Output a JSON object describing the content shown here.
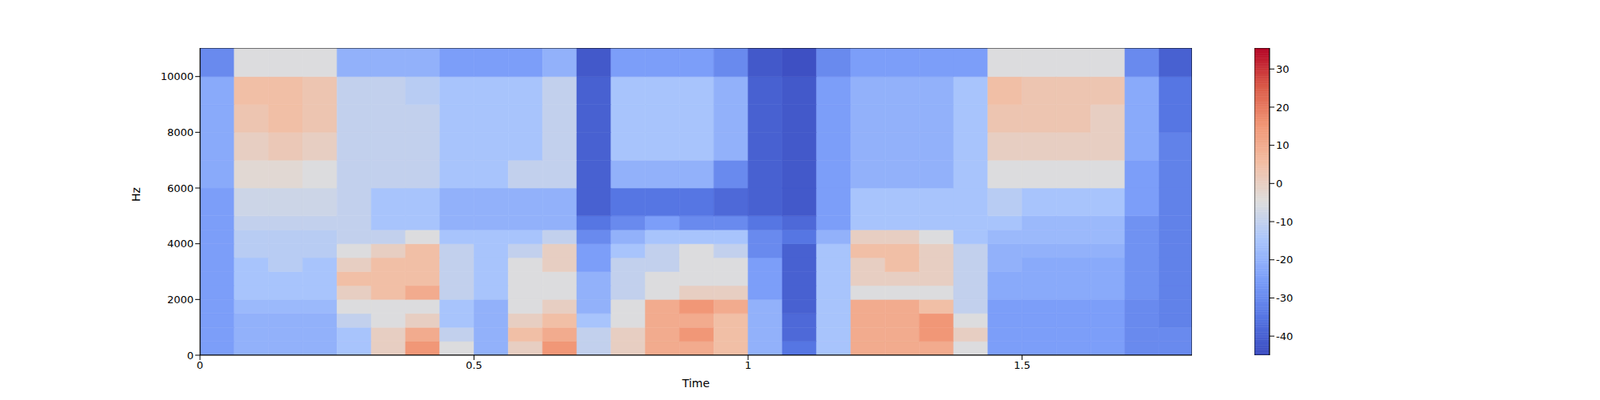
{
  "chart_data": {
    "type": "heatmap",
    "xlabel": "Time",
    "ylabel": "Hz",
    "color": "coolwarm",
    "xlim": [
      0,
      1.81
    ],
    "xticks": [
      0,
      0.5,
      1,
      1.5
    ],
    "ylim": [
      0,
      11025
    ],
    "yticks": [
      0,
      2000,
      4000,
      6000,
      8000,
      10000
    ],
    "x_edges": [
      0,
      0.0625,
      0.125,
      0.1875,
      0.25,
      0.3125,
      0.375,
      0.4375,
      0.5,
      0.5625,
      0.625,
      0.6875,
      0.75,
      0.8125,
      0.875,
      0.9375,
      1,
      1.0625,
      1.125,
      1.1875,
      1.25,
      1.3125,
      1.375,
      1.4375,
      1.5,
      1.5625,
      1.625,
      1.6875,
      1.75,
      1.81
    ],
    "y_edges": [
      0,
      500,
      1000,
      1500,
      2000,
      2500,
      3000,
      3500,
      4000,
      4500,
      5000,
      6000,
      7000,
      8000,
      9000,
      10000,
      11025
    ],
    "cells": [
      [
        -25,
        -20,
        -20,
        -20,
        -15,
        0,
        15,
        -5,
        -20,
        0,
        15,
        -10,
        0,
        10,
        10,
        5,
        -20,
        -35,
        -15,
        10,
        10,
        10,
        -5,
        -25,
        -25,
        -25,
        -25,
        -30,
        -30
      ],
      [
        -25,
        -20,
        -20,
        -20,
        -15,
        0,
        10,
        -10,
        -20,
        5,
        10,
        -10,
        0,
        10,
        15,
        5,
        -20,
        -38,
        -15,
        10,
        10,
        15,
        0,
        -25,
        -25,
        -25,
        -25,
        -30,
        -30
      ],
      [
        -25,
        -20,
        -20,
        -20,
        -10,
        -5,
        0,
        -15,
        -20,
        0,
        5,
        -15,
        -5,
        10,
        10,
        5,
        -20,
        -38,
        -15,
        10,
        10,
        15,
        -5,
        -25,
        -25,
        -25,
        -25,
        -30,
        -32
      ],
      [
        -25,
        -18,
        -18,
        -18,
        -5,
        -5,
        -5,
        -15,
        -20,
        -5,
        0,
        -20,
        -5,
        10,
        15,
        10,
        -20,
        -40,
        -15,
        10,
        10,
        5,
        -10,
        -25,
        -25,
        -25,
        -25,
        -30,
        -32
      ],
      [
        -25,
        -15,
        -15,
        -15,
        0,
        5,
        10,
        -10,
        -15,
        -5,
        -5,
        -20,
        -10,
        -5,
        0,
        0,
        -25,
        -40,
        -15,
        -5,
        -5,
        -5,
        -10,
        -22,
        -22,
        -22,
        -22,
        -28,
        -32
      ],
      [
        -25,
        -15,
        -15,
        -15,
        5,
        5,
        5,
        -10,
        -15,
        -5,
        -5,
        -20,
        -10,
        -5,
        -5,
        -5,
        -25,
        -40,
        -15,
        0,
        0,
        0,
        -10,
        -22,
        -22,
        -22,
        -22,
        -28,
        -32
      ],
      [
        -25,
        -15,
        -12,
        -15,
        0,
        5,
        5,
        -10,
        -15,
        -5,
        0,
        -25,
        -10,
        -10,
        -5,
        -5,
        -25,
        -40,
        -15,
        0,
        5,
        0,
        -10,
        -20,
        -22,
        -22,
        -22,
        -28,
        -32
      ],
      [
        -25,
        -12,
        -12,
        -12,
        -5,
        0,
        5,
        -10,
        -15,
        -10,
        0,
        -25,
        -15,
        -10,
        -5,
        -10,
        -30,
        -40,
        -15,
        5,
        5,
        0,
        -10,
        -20,
        -20,
        -20,
        -20,
        -28,
        -32
      ],
      [
        -25,
        -12,
        -12,
        -12,
        -10,
        -10,
        -5,
        -15,
        -15,
        -15,
        -10,
        -30,
        -20,
        -15,
        -15,
        -15,
        -30,
        -35,
        -20,
        0,
        0,
        -5,
        -15,
        -18,
        -18,
        -18,
        -18,
        -28,
        -32
      ],
      [
        -25,
        -10,
        -10,
        -10,
        -10,
        -15,
        -15,
        -20,
        -20,
        -20,
        -20,
        -35,
        -30,
        -25,
        -30,
        -30,
        -35,
        -38,
        -25,
        -15,
        -15,
        -15,
        -15,
        -15,
        -18,
        -18,
        -18,
        -28,
        -32
      ],
      [
        -25,
        -8,
        -8,
        -8,
        -10,
        -15,
        -15,
        -20,
        -20,
        -20,
        -20,
        -40,
        -35,
        -35,
        -35,
        -38,
        -40,
        -42,
        -25,
        -15,
        -15,
        -15,
        -15,
        -12,
        -15,
        -15,
        -15,
        -25,
        -32
      ],
      [
        -22,
        -3,
        -3,
        -5,
        -10,
        -10,
        -10,
        -15,
        -15,
        -10,
        -10,
        -40,
        -20,
        -20,
        -20,
        -30,
        -40,
        -42,
        -25,
        -20,
        -20,
        -20,
        -15,
        -5,
        -5,
        -5,
        -5,
        -25,
        -32
      ],
      [
        -22,
        0,
        2,
        0,
        -10,
        -10,
        -10,
        -15,
        -15,
        -15,
        -10,
        -40,
        -15,
        -15,
        -15,
        -20,
        -40,
        -42,
        -25,
        -20,
        -20,
        -20,
        -15,
        0,
        0,
        0,
        0,
        -22,
        -32
      ],
      [
        -22,
        3,
        5,
        3,
        -10,
        -10,
        -10,
        -15,
        -15,
        -15,
        -10,
        -40,
        -15,
        -15,
        -15,
        -20,
        -40,
        -42,
        -25,
        -20,
        -20,
        -20,
        -15,
        3,
        3,
        3,
        0,
        -22,
        -35
      ],
      [
        -22,
        5,
        5,
        3,
        -10,
        -10,
        -12,
        -15,
        -15,
        -15,
        -10,
        -40,
        -15,
        -15,
        -15,
        -20,
        -40,
        -42,
        -25,
        -20,
        -20,
        -20,
        -15,
        5,
        3,
        3,
        3,
        -22,
        -35
      ],
      [
        -30,
        -5,
        -5,
        -5,
        -20,
        -20,
        -20,
        -25,
        -25,
        -25,
        -20,
        -42,
        -25,
        -25,
        -25,
        -30,
        -42,
        -44,
        -30,
        -25,
        -25,
        -25,
        -25,
        -5,
        -5,
        -5,
        -5,
        -30,
        -40
      ]
    ],
    "zlim": [
      -45,
      35.5
    ],
    "zticks": [
      -40,
      -30,
      -20,
      -10,
      0,
      10,
      20,
      30
    ]
  }
}
